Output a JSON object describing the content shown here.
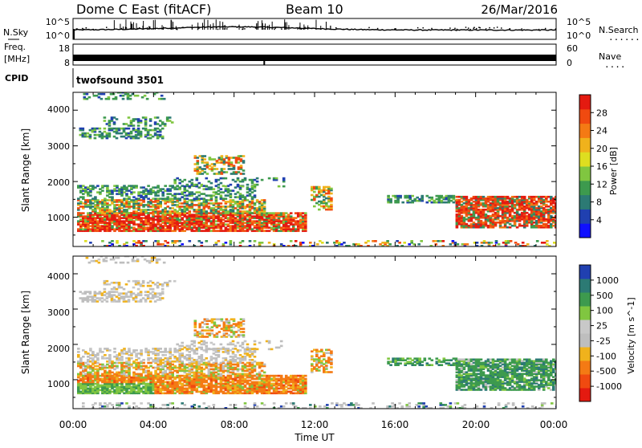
{
  "header": {
    "title": "Dome C East (fitACF)",
    "beam": "Beam 10",
    "date": "26/Mar/2016"
  },
  "side_labels": {
    "nsky": "N.Sky",
    "freq": "Freq.",
    "freq_unit": "[MHz]",
    "cpid": "CPID",
    "nsearch": "N.Search",
    "nave": "Nave",
    "dots_long": "........",
    "dots_short": "...."
  },
  "cpid_text": "twofsound 3501",
  "xaxis_label": "Time UT",
  "colors": {
    "power_scale": [
      "#1010ff",
      "#2040b0",
      "#2c7a74",
      "#3d9a4e",
      "#80c640",
      "#dede20",
      "#f0b21c",
      "#f47a14",
      "#f04a10",
      "#e41a10"
    ],
    "velocity_scale": [
      "#e41a10",
      "#f04a10",
      "#f47a14",
      "#f0b21c",
      "#bebebe",
      "#c8c8c8",
      "#80c640",
      "#3d9a4e",
      "#2c7a74",
      "#2040b0"
    ]
  },
  "chart_data": [
    {
      "type": "line",
      "name_left": "N.Sky",
      "name_right": "N.Search",
      "y_ticks_left": [
        "10^5",
        "10^0"
      ],
      "y_ticks_right": [
        "10^5",
        "10^0"
      ],
      "xlim": [
        0,
        24
      ]
    },
    {
      "type": "line",
      "name_left": "Freq.",
      "name_right": "Nave",
      "y_ticks_left": [
        "18",
        "8"
      ],
      "y_ticks_right": [
        "60",
        "0"
      ],
      "ylim_left": [
        8,
        18
      ],
      "ylim_right": [
        0,
        60
      ],
      "xlim": [
        0,
        24
      ]
    },
    {
      "type": "heatmap",
      "ylabel": "Slant Range [km]",
      "colorbar_label": "Power [dB]",
      "colorbar_ticks": [
        "4",
        "8",
        "12",
        "16",
        "20",
        "24",
        "28"
      ],
      "y_ticks": [
        "1000",
        "2000",
        "3000",
        "4000"
      ],
      "ylim": [
        180,
        4500
      ],
      "xlim": [
        0,
        24
      ]
    },
    {
      "type": "heatmap",
      "ylabel": "Slant Range [km]",
      "colorbar_label": "Velocity [m s^-1]",
      "colorbar_ticks": [
        "-1000",
        "-500",
        "-100",
        "-25",
        "25",
        "100",
        "500",
        "1000"
      ],
      "y_ticks": [
        "1000",
        "2000",
        "3000",
        "4000"
      ],
      "x_ticks": [
        "00:00",
        "04:00",
        "08:00",
        "12:00",
        "16:00",
        "20:00",
        "00:00"
      ],
      "ylim": [
        180,
        4500
      ],
      "xlim": [
        0,
        24
      ]
    }
  ]
}
